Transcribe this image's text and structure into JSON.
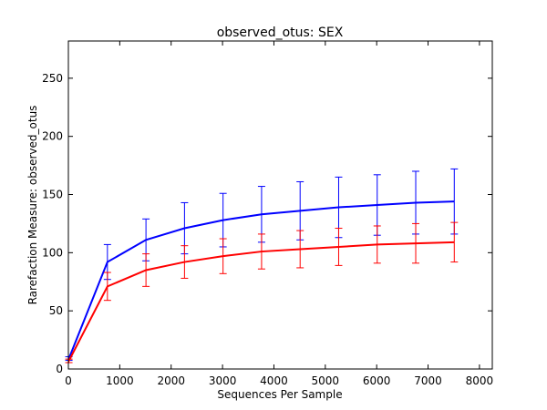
{
  "chart_data": {
    "type": "line",
    "title": "observed_otus: SEX",
    "xlabel": "Sequences Per Sample",
    "ylabel": "Rarefaction Measure: observed_otus",
    "xlim": [
      0,
      8250
    ],
    "ylim": [
      0,
      282
    ],
    "xticks": [
      0,
      1000,
      2000,
      3000,
      4000,
      5000,
      6000,
      7000,
      8000
    ],
    "yticks": [
      0,
      50,
      100,
      150,
      200,
      250
    ],
    "grid": false,
    "legend": "none",
    "x": [
      10,
      760,
      1510,
      2260,
      3010,
      3760,
      4510,
      5260,
      6010,
      6760,
      7510
    ],
    "series": [
      {
        "color": "#0000ff",
        "values": [
          9,
          92,
          111,
          121,
          128,
          133,
          136,
          139,
          141,
          143,
          144
        ],
        "errors": [
          1.5,
          15,
          18,
          22,
          23,
          24,
          25,
          26,
          26,
          27,
          28
        ]
      },
      {
        "color": "#ff0000",
        "values": [
          7,
          71,
          85,
          92,
          97,
          101,
          103,
          105,
          107,
          108,
          109
        ],
        "errors": [
          1.5,
          12,
          14,
          14,
          15,
          15,
          16,
          16,
          16,
          17,
          17
        ]
      }
    ]
  }
}
